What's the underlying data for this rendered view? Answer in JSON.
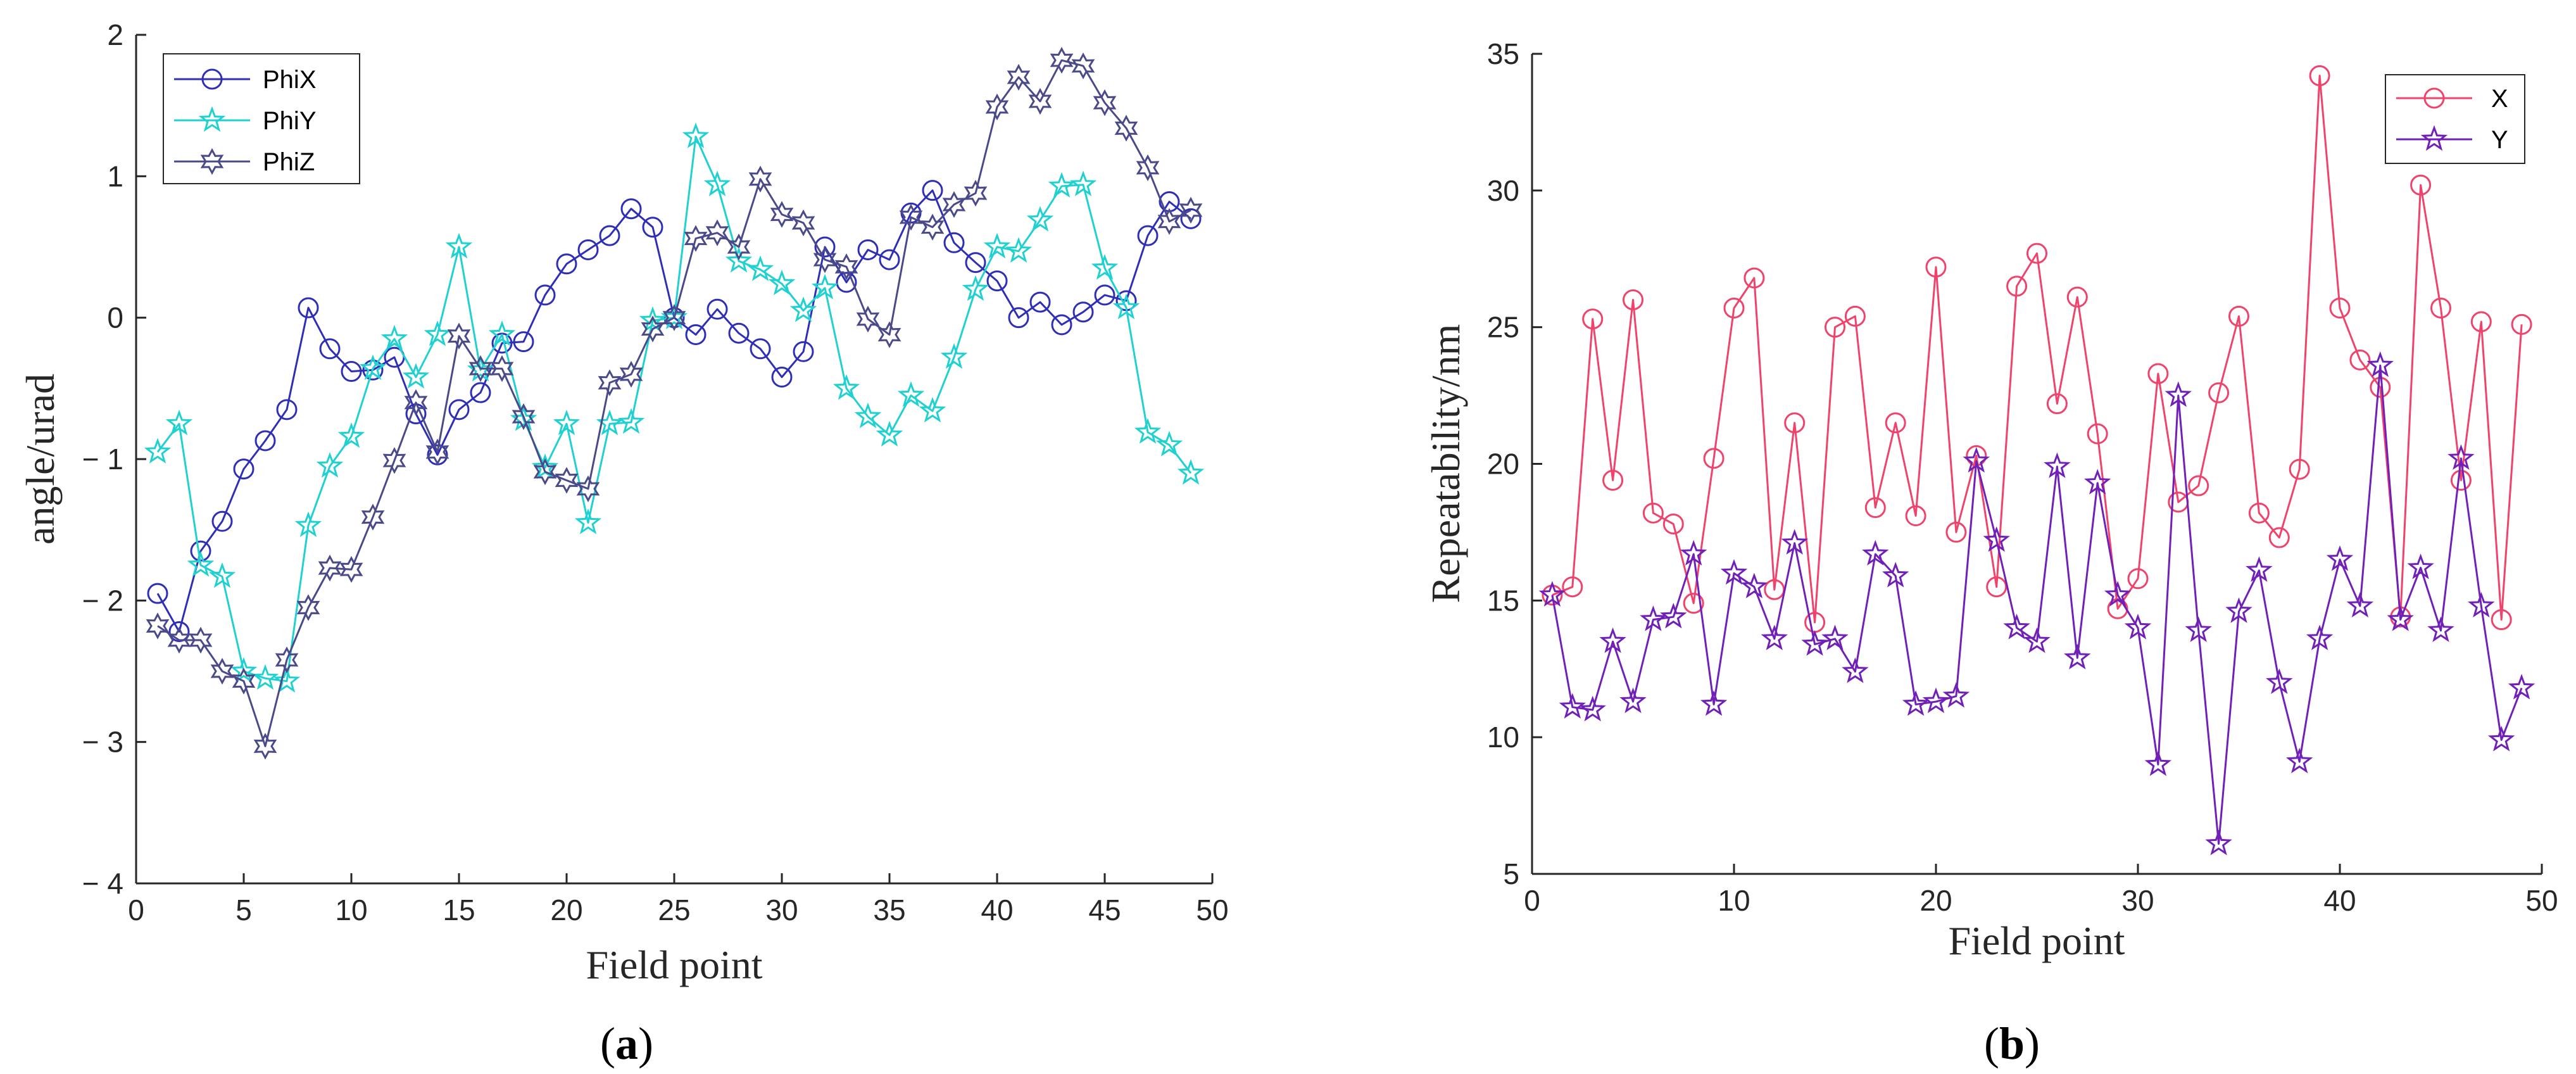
{
  "chart_data": [
    {
      "type": "line",
      "panel_label": "a",
      "title": "",
      "xlabel": "Field point",
      "ylabel": "angle/urad",
      "xlim": [
        0,
        50
      ],
      "ylim": [
        -4,
        2
      ],
      "x_ticks": [
        0,
        5,
        10,
        15,
        20,
        25,
        30,
        35,
        40,
        45,
        50
      ],
      "y_ticks": [
        -4,
        -3,
        -2,
        -1,
        0,
        1,
        2
      ],
      "y_tick_labels": [
        "− 4",
        "− 3",
        "− 2",
        "− 1",
        "0",
        "1",
        "2"
      ],
      "legend_position": "top-left",
      "grid": false,
      "x": [
        1,
        2,
        3,
        4,
        5,
        6,
        7,
        8,
        9,
        10,
        11,
        12,
        13,
        14,
        15,
        16,
        17,
        18,
        19,
        20,
        21,
        22,
        23,
        24,
        25,
        26,
        27,
        28,
        29,
        30,
        31,
        32,
        33,
        34,
        35,
        36,
        37,
        38,
        39,
        40,
        41,
        42,
        43,
        44,
        45,
        46,
        47,
        48,
        49
      ],
      "series": [
        {
          "name": "PhiX",
          "color": "#2e2eb8",
          "marker": "circle",
          "values": [
            -1.95,
            -2.22,
            -1.65,
            -1.44,
            -1.07,
            -0.87,
            -0.65,
            0.07,
            -0.22,
            -0.38,
            -0.37,
            -0.28,
            -0.68,
            -0.97,
            -0.65,
            -0.53,
            -0.18,
            -0.17,
            0.16,
            0.38,
            0.48,
            0.58,
            0.77,
            0.64,
            0.0,
            -0.12,
            0.06,
            -0.11,
            -0.22,
            -0.42,
            -0.24,
            0.5,
            0.25,
            0.48,
            0.41,
            0.74,
            0.9,
            0.53,
            0.39,
            0.26,
            0.0,
            0.11,
            -0.05,
            0.04,
            0.16,
            0.12,
            0.58,
            0.82,
            0.7
          ]
        },
        {
          "name": "PhiY",
          "color": "#1fd1d1",
          "marker": "star",
          "values": [
            -0.95,
            -0.75,
            -1.75,
            -1.83,
            -2.5,
            -2.55,
            -2.57,
            -1.47,
            -1.05,
            -0.84,
            -0.36,
            -0.15,
            -0.42,
            -0.12,
            0.5,
            -0.37,
            -0.12,
            -0.72,
            -1.06,
            -0.75,
            -1.45,
            -0.75,
            -0.74,
            -0.02,
            0.0,
            1.28,
            0.94,
            0.4,
            0.34,
            0.24,
            0.05,
            0.21,
            -0.5,
            -0.7,
            -0.83,
            -0.55,
            -0.66,
            -0.28,
            0.2,
            0.5,
            0.47,
            0.69,
            0.93,
            0.94,
            0.35,
            0.07,
            -0.81,
            -0.9,
            -1.1
          ]
        },
        {
          "name": "PhiZ",
          "color": "#4a4a8a",
          "marker": "hexagram",
          "values": [
            -2.18,
            -2.28,
            -2.28,
            -2.5,
            -2.57,
            -3.03,
            -2.42,
            -2.05,
            -1.77,
            -1.78,
            -1.41,
            -1.01,
            -0.6,
            -0.95,
            -0.13,
            -0.36,
            -0.36,
            -0.7,
            -1.09,
            -1.15,
            -1.21,
            -0.46,
            -0.4,
            -0.08,
            0.0,
            0.56,
            0.6,
            0.5,
            0.98,
            0.73,
            0.67,
            0.41,
            0.36,
            -0.01,
            -0.12,
            0.71,
            0.64,
            0.8,
            0.88,
            1.49,
            1.7,
            1.53,
            1.82,
            1.78,
            1.52,
            1.34,
            1.06,
            0.68,
            0.76
          ]
        }
      ]
    },
    {
      "type": "line",
      "panel_label": "b",
      "title": "",
      "xlabel": "Field point",
      "ylabel": "Repeatability/nm",
      "xlim": [
        0,
        50
      ],
      "ylim": [
        5,
        35
      ],
      "x_ticks": [
        0,
        10,
        20,
        30,
        40,
        50
      ],
      "y_ticks": [
        5,
        10,
        15,
        20,
        25,
        30,
        35
      ],
      "y_tick_labels": [
        "5",
        "10",
        "15",
        "20",
        "25",
        "30",
        "35"
      ],
      "legend_position": "top-right",
      "grid": false,
      "x": [
        1,
        2,
        3,
        4,
        5,
        6,
        7,
        8,
        9,
        10,
        11,
        12,
        13,
        14,
        15,
        16,
        17,
        18,
        19,
        20,
        21,
        22,
        23,
        24,
        25,
        26,
        27,
        28,
        29,
        30,
        31,
        32,
        33,
        34,
        35,
        36,
        37,
        38,
        39,
        40,
        41,
        42,
        43,
        44,
        45,
        46,
        47,
        48,
        49
      ],
      "series": [
        {
          "name": "X",
          "color": "#f0426b",
          "marker": "circle",
          "values": [
            15.2,
            15.5,
            25.3,
            19.4,
            26.0,
            18.2,
            17.8,
            14.9,
            20.2,
            25.7,
            26.8,
            15.4,
            21.5,
            14.2,
            25.0,
            25.4,
            18.4,
            21.5,
            18.1,
            27.2,
            17.5,
            20.3,
            15.5,
            26.5,
            27.7,
            22.2,
            26.1,
            21.1,
            14.7,
            15.8,
            23.3,
            18.6,
            19.2,
            22.6,
            25.4,
            18.2,
            17.3,
            19.8,
            34.2,
            25.7,
            23.8,
            22.8,
            14.4,
            30.2,
            25.7,
            19.4,
            25.2,
            14.3,
            25.1
          ]
        },
        {
          "name": "Y",
          "color": "#7020b8",
          "marker": "star",
          "values": [
            15.2,
            11.1,
            11.0,
            13.5,
            11.3,
            14.3,
            14.4,
            16.7,
            11.2,
            16.0,
            15.5,
            13.6,
            17.1,
            13.4,
            13.6,
            12.4,
            16.7,
            15.9,
            11.2,
            11.3,
            11.5,
            20.1,
            17.2,
            14.0,
            13.5,
            19.9,
            12.9,
            19.3,
            15.2,
            14.0,
            9.0,
            22.5,
            13.9,
            6.1,
            14.6,
            16.1,
            12.0,
            9.1,
            13.6,
            16.5,
            14.8,
            23.6,
            14.3,
            16.2,
            13.9,
            20.2,
            14.8,
            9.9,
            11.8
          ]
        }
      ]
    }
  ]
}
